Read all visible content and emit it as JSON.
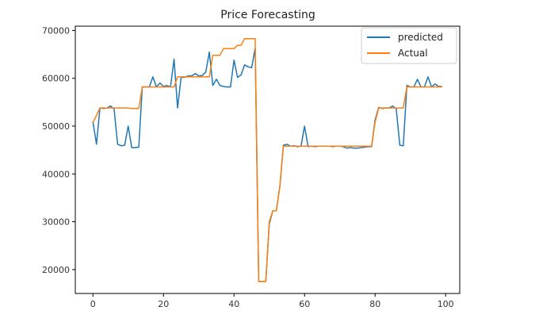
{
  "chart_data": {
    "type": "line",
    "title": "Price Forecasting",
    "xlabel": "",
    "ylabel": "",
    "xlim": [
      -5,
      104
    ],
    "ylim": [
      15000,
      70900
    ],
    "xticks": [
      0,
      20,
      40,
      60,
      80,
      100
    ],
    "yticks": [
      20000,
      30000,
      40000,
      50000,
      60000,
      70000
    ],
    "grid": false,
    "legend_position": "top-right",
    "series": [
      {
        "name": "predicted",
        "color": "#1f77b4",
        "x": [
          0,
          1,
          2,
          3,
          4,
          5,
          6,
          7,
          8,
          9,
          10,
          11,
          12,
          13,
          14,
          15,
          16,
          17,
          18,
          19,
          20,
          21,
          22,
          23,
          24,
          25,
          26,
          27,
          28,
          29,
          30,
          31,
          32,
          33,
          34,
          35,
          36,
          37,
          38,
          39,
          40,
          41,
          42,
          43,
          44,
          45,
          46,
          47,
          48,
          49,
          50,
          51,
          52,
          53,
          54,
          55,
          56,
          57,
          58,
          59,
          60,
          61,
          62,
          63,
          64,
          65,
          66,
          67,
          68,
          69,
          70,
          71,
          72,
          73,
          74,
          75,
          76,
          77,
          78,
          79,
          80,
          81,
          82,
          83,
          84,
          85,
          86,
          87,
          88,
          89,
          90,
          91,
          92,
          93,
          94,
          95,
          96,
          97,
          98,
          99
        ],
        "values": [
          51000,
          46200,
          53800,
          53700,
          53800,
          54200,
          53600,
          46200,
          45900,
          46000,
          50000,
          45500,
          45500,
          45600,
          58200,
          58200,
          58200,
          60300,
          58200,
          59000,
          58300,
          58500,
          58200,
          64000,
          53800,
          60200,
          60200,
          60500,
          60500,
          61000,
          60500,
          60600,
          61300,
          65500,
          58500,
          59800,
          58500,
          58300,
          58200,
          58200,
          63800,
          60200,
          60700,
          62800,
          62400,
          62200,
          66300,
          17500,
          17500,
          17500,
          29500,
          32300,
          32300,
          37400,
          46000,
          46200,
          45800,
          45900,
          45700,
          45800,
          50000,
          45700,
          45800,
          45700,
          45800,
          45800,
          45800,
          45800,
          45700,
          45800,
          45800,
          45700,
          45400,
          45500,
          45400,
          45400,
          45500,
          45600,
          45700,
          45700,
          51300,
          53900,
          53700,
          53800,
          53800,
          54200,
          53600,
          46000,
          45900,
          58500,
          58200,
          58200,
          59800,
          58200,
          58200,
          60300,
          58200,
          58800,
          58300,
          58300
        ]
      },
      {
        "name": "Actual",
        "color": "#ff7f0e",
        "x": [
          0,
          1,
          2,
          3,
          4,
          5,
          6,
          7,
          8,
          9,
          10,
          11,
          12,
          13,
          14,
          15,
          16,
          17,
          18,
          19,
          20,
          21,
          22,
          23,
          24,
          25,
          26,
          27,
          28,
          29,
          30,
          31,
          32,
          33,
          34,
          35,
          36,
          37,
          38,
          39,
          40,
          41,
          42,
          43,
          44,
          45,
          46,
          47,
          48,
          49,
          50,
          51,
          52,
          53,
          54,
          55,
          56,
          57,
          58,
          59,
          60,
          61,
          62,
          63,
          64,
          65,
          66,
          67,
          68,
          69,
          70,
          71,
          72,
          73,
          74,
          75,
          76,
          77,
          78,
          79,
          80,
          81,
          82,
          83,
          84,
          85,
          86,
          87,
          88,
          89,
          90,
          91,
          92,
          93,
          94,
          95,
          96,
          97,
          98,
          99
        ],
        "values": [
          50700,
          52200,
          53800,
          53800,
          53800,
          53800,
          53800,
          53800,
          53800,
          53800,
          53800,
          53700,
          53700,
          53700,
          58200,
          58200,
          58200,
          58200,
          58200,
          58200,
          58200,
          58200,
          58200,
          58200,
          60300,
          60300,
          60300,
          60300,
          60300,
          60300,
          60300,
          60300,
          60300,
          60300,
          64800,
          64800,
          64800,
          66200,
          66200,
          66200,
          66200,
          66900,
          66900,
          68300,
          68300,
          68300,
          68300,
          17500,
          17500,
          17500,
          30000,
          32300,
          32300,
          37400,
          45800,
          45800,
          45800,
          45800,
          45800,
          45800,
          45800,
          45800,
          45800,
          45800,
          45800,
          45800,
          45800,
          45800,
          45800,
          45800,
          45800,
          45800,
          45800,
          45800,
          45800,
          45800,
          45800,
          45800,
          45800,
          45800,
          50800,
          53800,
          53800,
          53800,
          53800,
          53800,
          53800,
          53800,
          53800,
          58200,
          58200,
          58200,
          58200,
          58200,
          58200,
          58200,
          58200,
          58200,
          58200,
          58200
        ]
      }
    ]
  }
}
